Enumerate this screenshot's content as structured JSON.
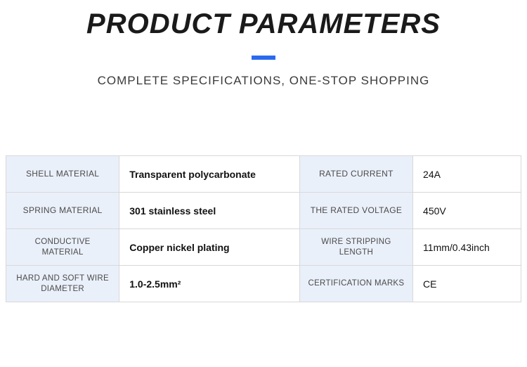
{
  "header": {
    "title": "PRODUCT PARAMETERS",
    "subtitle": "COMPLETE SPECIFICATIONS, ONE-STOP SHOPPING",
    "accent_color": "#2a6af0",
    "title_color": "#1a1a1a",
    "subtitle_color": "#3a3a3a",
    "title_fontsize": 40,
    "subtitle_fontsize": 17
  },
  "table": {
    "label_bg": "#eaf0fa",
    "value_bg": "#ffffff",
    "border_color": "#d8d8d8",
    "label_color": "#4a4a4a",
    "value_color": "#111111",
    "column_widths_pct": [
      22,
      35,
      22,
      21
    ],
    "rows": [
      {
        "left_label": "SHELL MATERIAL",
        "left_value": "Transparent polycarbonate",
        "left_bold": true,
        "right_label": "RATED CURRENT",
        "right_value": "24A",
        "right_bold": false
      },
      {
        "left_label": "SPRING MATERIAL",
        "left_value": "301 stainless steel",
        "left_bold": true,
        "right_label": "THE RATED VOLTAGE",
        "right_value": "450V",
        "right_bold": false
      },
      {
        "left_label": "CONDUCTIVE MATERIAL",
        "left_value": "Copper nickel plating",
        "left_bold": true,
        "right_label": "WIRE STRIPPING LENGTH",
        "right_value": "11mm/0.43inch",
        "right_bold": false
      },
      {
        "left_label": "HARD AND SOFT WIRE DIAMETER",
        "left_value": "1.0-2.5mm²",
        "left_bold": true,
        "right_label": "CERTIFICATION MARKS",
        "right_value": "CE",
        "right_bold": false
      }
    ]
  }
}
